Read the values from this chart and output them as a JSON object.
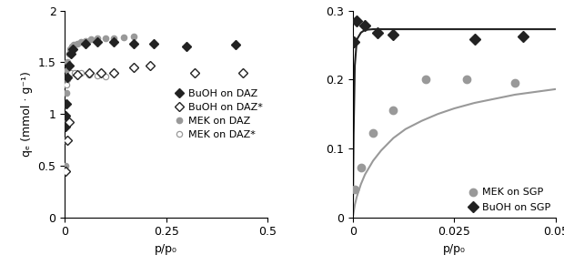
{
  "left": {
    "BuOH_DAZ_x": [
      0.001,
      0.002,
      0.004,
      0.007,
      0.01,
      0.015,
      0.02,
      0.05,
      0.08,
      0.12,
      0.17,
      0.22,
      0.3,
      0.42
    ],
    "BuOH_DAZ_y": [
      0.88,
      0.98,
      1.1,
      1.35,
      1.47,
      1.58,
      1.63,
      1.68,
      1.7,
      1.7,
      1.68,
      1.68,
      1.65,
      1.67
    ],
    "BuOH_DAZ_star_x": [
      0.002,
      0.005,
      0.01,
      0.03,
      0.06,
      0.09,
      0.12,
      0.17,
      0.21,
      0.32,
      0.44
    ],
    "BuOH_DAZ_star_y": [
      0.45,
      0.75,
      0.92,
      1.38,
      1.4,
      1.4,
      1.4,
      1.45,
      1.47,
      1.4,
      1.4
    ],
    "MEK_DAZ_x": [
      0.001,
      0.002,
      0.003,
      0.005,
      0.007,
      0.01,
      0.013,
      0.017,
      0.022,
      0.03,
      0.04,
      0.05,
      0.065,
      0.08,
      0.1,
      0.12,
      0.145,
      0.17
    ],
    "MEK_DAZ_y": [
      0.5,
      0.95,
      1.2,
      1.42,
      1.5,
      1.58,
      1.63,
      1.65,
      1.67,
      1.68,
      1.7,
      1.71,
      1.72,
      1.73,
      1.73,
      1.73,
      1.74,
      1.75
    ],
    "MEK_DAZ_star_x": [
      0.001,
      0.002,
      0.004,
      0.006,
      0.009,
      0.015,
      0.025,
      0.04,
      0.06,
      0.08,
      0.1
    ],
    "MEK_DAZ_star_y": [
      0.75,
      1.1,
      1.28,
      1.34,
      1.38,
      1.4,
      1.4,
      1.4,
      1.38,
      1.37,
      1.36
    ],
    "xlim": [
      0,
      0.5
    ],
    "ylim": [
      0,
      2.0
    ],
    "xticks": [
      0,
      0.25,
      0.5
    ],
    "yticks": [
      0,
      0.5,
      1.0,
      1.5,
      2.0
    ],
    "xlabel": "p/p₀",
    "ylabel": "qₑ (mmol · g⁻¹)"
  },
  "right": {
    "MEK_SGP_x": [
      0.0005,
      0.002,
      0.005,
      0.01,
      0.018,
      0.028,
      0.04
    ],
    "MEK_SGP_y": [
      0.04,
      0.072,
      0.122,
      0.155,
      0.2,
      0.2,
      0.195
    ],
    "MEK_SGP_fit_x": [
      0.0,
      0.0005,
      0.001,
      0.002,
      0.003,
      0.005,
      0.007,
      0.01,
      0.013,
      0.017,
      0.021,
      0.025,
      0.03,
      0.035,
      0.04,
      0.045,
      0.05
    ],
    "MEK_SGP_fit_y": [
      0.0,
      0.018,
      0.03,
      0.048,
      0.062,
      0.082,
      0.097,
      0.115,
      0.128,
      0.14,
      0.15,
      0.158,
      0.166,
      0.172,
      0.178,
      0.182,
      0.186
    ],
    "BuOH_SGP_x": [
      0.0002,
      0.001,
      0.003,
      0.006,
      0.01,
      0.03,
      0.042
    ],
    "BuOH_SGP_y": [
      0.255,
      0.285,
      0.278,
      0.268,
      0.265,
      0.258,
      0.262
    ],
    "BuOH_SGP_fit_x": [
      0.0,
      0.0002,
      0.0005,
      0.001,
      0.002,
      0.003,
      0.005,
      0.008,
      0.015,
      0.025,
      0.04,
      0.05
    ],
    "BuOH_SGP_fit_y": [
      0.0,
      0.12,
      0.22,
      0.258,
      0.268,
      0.272,
      0.273,
      0.273,
      0.273,
      0.273,
      0.273,
      0.273
    ],
    "xlim": [
      0,
      0.05
    ],
    "ylim": [
      0,
      0.3
    ],
    "xticks": [
      0,
      0.025,
      0.05
    ],
    "yticks": [
      0,
      0.1,
      0.2,
      0.3
    ],
    "xlabel": "p/p₀",
    "ylabel": ""
  },
  "marker_color_dark": "#222222",
  "marker_color_gray": "#999999",
  "line_color_dark": "#222222",
  "line_color_gray": "#999999",
  "fontsize": 9,
  "legend_fontsize": 8
}
